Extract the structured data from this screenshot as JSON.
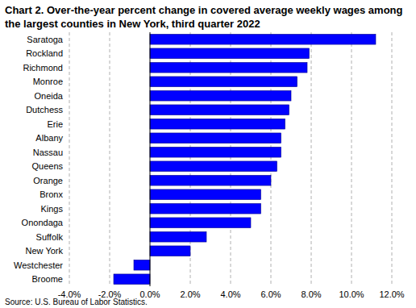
{
  "chart_data": {
    "type": "bar",
    "orientation": "horizontal",
    "title": "Chart 2. Over-the-year percent change in covered average weekly wages among the largest counties in New York, third quarter 2022",
    "source": "Source: U.S. Bureau of Labor Statistics.",
    "categories": [
      "Saratoga",
      "Rockland",
      "Richmond",
      "Monroe",
      "Oneida",
      "Dutchess",
      "Erie",
      "Albany",
      "Nassau",
      "Queens",
      "Orange",
      "Bronx",
      "Kings",
      "Onondaga",
      "Suffolk",
      "New York",
      "Westchester",
      "Broome"
    ],
    "values": [
      11.2,
      7.9,
      7.8,
      7.3,
      7.0,
      6.9,
      6.7,
      6.5,
      6.5,
      6.3,
      6.0,
      5.5,
      5.5,
      5.0,
      2.8,
      2.0,
      -0.8,
      -1.8
    ],
    "color": "#0000ff",
    "xlim": [
      -4,
      12
    ],
    "xticks": [
      {
        "value": -4,
        "label": "-4.0%"
      },
      {
        "value": -2,
        "label": "-2.0%"
      },
      {
        "value": 0,
        "label": "0.0%"
      },
      {
        "value": 2,
        "label": "2.0%"
      },
      {
        "value": 4,
        "label": "4.0%"
      },
      {
        "value": 6,
        "label": "6.0%"
      },
      {
        "value": 8,
        "label": "8.0%"
      },
      {
        "value": 10,
        "label": "10.0%"
      },
      {
        "value": 12,
        "label": "12.0%"
      }
    ],
    "grid": true
  }
}
